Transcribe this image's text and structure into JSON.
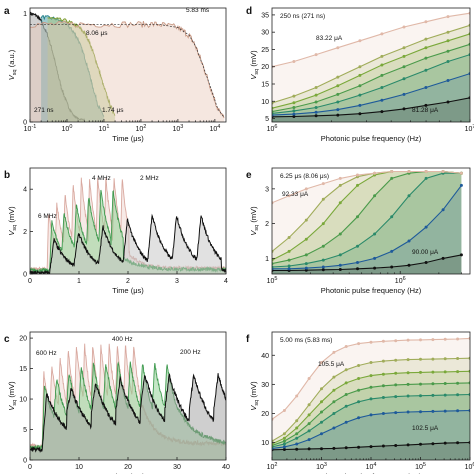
{
  "chart_data": [
    {
      "panel": "a",
      "type": "line",
      "xscale": "log",
      "yscale": "linear",
      "xlabel": "Time (μs)",
      "ylabel": "V_sq (a.u.)",
      "xlim": [
        0.1,
        20000
      ],
      "ylim": [
        0,
        1.05
      ],
      "xticks": [
        {
          "v": 0.1,
          "label": "10^-1"
        },
        {
          "v": 1,
          "label": "10^0"
        },
        {
          "v": 10,
          "label": "10^1"
        },
        {
          "v": 100,
          "label": "10^2"
        },
        {
          "v": 1000,
          "label": "10^3"
        },
        {
          "v": 10000,
          "label": "10^4"
        }
      ],
      "yticks": [
        0,
        1
      ],
      "series": [
        {
          "label": "271 ns",
          "color": "#111111",
          "fill": "#9a9a9a",
          "x": [
            0.1,
            0.15,
            0.2,
            0.3,
            0.4,
            0.5,
            0.7,
            1.0,
            1.5,
            2,
            3
          ],
          "y": [
            1.0,
            0.98,
            0.93,
            0.8,
            0.66,
            0.52,
            0.32,
            0.17,
            0.06,
            0.03,
            0.02
          ]
        },
        {
          "label": "1.74 μs",
          "color": "#1f7f8a",
          "fill": "#2a8f98",
          "x": [
            0.2,
            0.5,
            1,
            1.5,
            2,
            3,
            4,
            5,
            7,
            10
          ],
          "y": [
            0.97,
            0.95,
            0.9,
            0.83,
            0.76,
            0.6,
            0.45,
            0.32,
            0.15,
            0.05
          ]
        },
        {
          "label": "8.06 μs",
          "color": "#7a9a2a",
          "fill": "#a8c070",
          "x": [
            0.3,
            1,
            2,
            3,
            4,
            5,
            7,
            10,
            15,
            20
          ],
          "y": [
            0.96,
            0.93,
            0.88,
            0.82,
            0.74,
            0.65,
            0.5,
            0.32,
            0.15,
            0.06
          ]
        },
        {
          "label": "5.83 ms",
          "color": "#c99a86",
          "fill": "#e8c9bb",
          "x": [
            0.1,
            1,
            10,
            100,
            300,
            1000,
            2000,
            3000,
            5000,
            8000,
            12000,
            18000
          ],
          "y": [
            0.9,
            0.9,
            0.9,
            0.9,
            0.9,
            0.87,
            0.8,
            0.7,
            0.5,
            0.3,
            0.12,
            0.04
          ]
        }
      ],
      "annotations": [
        "271 ns",
        "1.74 μs",
        "8.06 μs",
        "5.83 ms"
      ]
    },
    {
      "panel": "b",
      "type": "line",
      "xscale": "linear",
      "xlabel": "Time (μs)",
      "ylabel": "V_sq (mV)",
      "xlim": [
        0,
        4
      ],
      "ylim": [
        0,
        5
      ],
      "xticks": [
        0,
        1,
        2,
        3,
        4
      ],
      "yticks": [
        0,
        2,
        4
      ],
      "series": [
        {
          "label": "6 MHz",
          "color": "#d9a9a0",
          "fill": "#f0d6cf",
          "f": 6,
          "x0": 0.35,
          "n": 10,
          "peak": 4.6,
          "base": 0.9,
          "tau": 0.16
        },
        {
          "label": "4 MHz",
          "color": "#3f9a4f",
          "fill": "#8ccf8f",
          "f": 4,
          "x0": 0.4,
          "n": 6,
          "peak": 4.0,
          "base": 0.7,
          "tau": 0.22
        },
        {
          "label": "2 MHz",
          "color": "#111111",
          "fill": "#c4c4c4",
          "f": 2,
          "x0": 0.4,
          "n": 7,
          "peak": 2.8,
          "base": 0.2,
          "tau": 0.28
        }
      ],
      "annotations": [
        "6 MHz",
        "4 MHz",
        "2 MHz"
      ]
    },
    {
      "panel": "c",
      "type": "line",
      "xscale": "linear",
      "xlabel": "Time (ms)",
      "ylabel": "V_sq (mV)",
      "xlim": [
        0,
        40
      ],
      "ylim": [
        0,
        21
      ],
      "xticks": [
        0,
        10,
        20,
        30,
        40
      ],
      "yticks": [
        0,
        5,
        10,
        15,
        20
      ],
      "series": [
        {
          "label": "600 Hz",
          "color": "#d9a9a0",
          "fill": "#f0d6cf",
          "f": 0.6,
          "x0": 2.5,
          "n": 12,
          "peak": 19,
          "base": 9,
          "tau": 1.8
        },
        {
          "label": "400 Hz",
          "color": "#3f9a4f",
          "fill": "#8ccf8f",
          "f": 0.4,
          "x0": 2.5,
          "n": 11,
          "peak": 16,
          "base": 8,
          "tau": 2.6
        },
        {
          "label": "200 Hz",
          "color": "#111111",
          "fill": "#a0a0a0",
          "f": 0.2,
          "x0": 2.5,
          "n": 8,
          "peak": 14,
          "base": 7,
          "tau": 4.0
        }
      ],
      "annotations": [
        "600 Hz",
        "400 Hz",
        "200 Hz"
      ]
    },
    {
      "panel": "d",
      "type": "line",
      "xscale": "log",
      "xlabel": "Photonic pulse frequency (Hz)",
      "ylabel": "V_sq (mV)",
      "xlim": [
        1000000,
        10000000
      ],
      "ylim": [
        4,
        37
      ],
      "xticks": [
        {
          "v": 1000000,
          "label": "10^6"
        },
        {
          "v": 10000000,
          "label": "10^7"
        }
      ],
      "yticks": [
        5,
        10,
        15,
        20,
        25,
        30,
        35
      ],
      "x": [
        1000000,
        1290000,
        1670000,
        2150000,
        2780000,
        3590000,
        4640000,
        5990000,
        7740000,
        10000000
      ],
      "series": [
        {
          "color": "#111111",
          "values": [
            5.5,
            5.6,
            5.8,
            6.0,
            6.4,
            7.0,
            7.8,
            8.8,
            9.8,
            11.0
          ]
        },
        {
          "color": "#1e5a9a",
          "values": [
            6.0,
            6.3,
            6.8,
            7.6,
            8.8,
            10.3,
            12.0,
            14.0,
            16.0,
            18.0
          ]
        },
        {
          "color": "#2a8a6a",
          "values": [
            6.5,
            7.2,
            8.2,
            9.8,
            11.8,
            14.0,
            16.5,
            19.0,
            21.5,
            23.5
          ]
        },
        {
          "color": "#4a9a4a",
          "values": [
            7.0,
            8.2,
            9.8,
            12.0,
            14.5,
            17.5,
            20.0,
            22.5,
            24.5,
            26.5
          ]
        },
        {
          "color": "#7aa83a",
          "values": [
            8.0,
            9.6,
            11.8,
            14.5,
            17.5,
            20.5,
            23.0,
            25.5,
            27.5,
            29.5
          ]
        },
        {
          "color": "#a0ac5a",
          "values": [
            9.5,
            11.5,
            14.0,
            17.0,
            20.0,
            23.0,
            25.5,
            28.0,
            30.0,
            32.0
          ]
        },
        {
          "color": "#e0b8a8",
          "values": [
            20.0,
            21.5,
            23.5,
            25.5,
            27.5,
            29.5,
            31.5,
            33.0,
            34.5,
            35.5
          ]
        }
      ],
      "annotations": [
        "250 ns (271 ns)",
        "83.22 μA",
        "81.28 μA"
      ]
    },
    {
      "panel": "e",
      "type": "line",
      "xscale": "log",
      "xlabel": "Photonic pulse frequency (Hz)",
      "ylabel": "V_sq (mV)",
      "xlim": [
        100000,
        3500000
      ],
      "ylim": [
        0.55,
        3.6
      ],
      "xticks": [
        {
          "v": 100000,
          "label": "10^5"
        },
        {
          "v": 1000000,
          "label": "10^6"
        }
      ],
      "yticks": [
        1,
        2,
        3
      ],
      "x": [
        100000,
        136000,
        185000,
        251000,
        341000,
        464000,
        631000,
        858000,
        1170000,
        1590000,
        2160000,
        3000000
      ],
      "series": [
        {
          "color": "#111111",
          "values": [
            0.65,
            0.65,
            0.66,
            0.67,
            0.68,
            0.7,
            0.72,
            0.75,
            0.8,
            0.88,
            1.0,
            1.1
          ]
        },
        {
          "color": "#1e5a9a",
          "values": [
            0.7,
            0.7,
            0.72,
            0.75,
            0.8,
            0.88,
            1.0,
            1.2,
            1.5,
            1.9,
            2.4,
            3.1
          ]
        },
        {
          "color": "#2a8a6a",
          "values": [
            0.75,
            0.78,
            0.85,
            0.95,
            1.1,
            1.35,
            1.7,
            2.2,
            2.8,
            3.3,
            3.45,
            3.45
          ]
        },
        {
          "color": "#4a9a4a",
          "values": [
            0.85,
            0.95,
            1.1,
            1.35,
            1.7,
            2.2,
            2.8,
            3.3,
            3.45,
            3.5,
            3.5,
            3.45
          ]
        },
        {
          "color": "#7aa83a",
          "values": [
            0.95,
            1.2,
            1.55,
            2.0,
            2.6,
            3.1,
            3.4,
            3.5,
            3.5,
            3.5,
            3.5,
            3.45
          ]
        },
        {
          "color": "#a0ac5a",
          "values": [
            1.2,
            1.6,
            2.1,
            2.7,
            3.1,
            3.35,
            3.45,
            3.5,
            3.5,
            3.5,
            3.5,
            3.45
          ]
        },
        {
          "color": "#e0b8a8",
          "values": [
            2.6,
            2.8,
            3.0,
            3.15,
            3.3,
            3.4,
            3.45,
            3.5,
            3.5,
            3.5,
            3.5,
            3.45
          ]
        }
      ],
      "annotations": [
        "6.25 μs (8.06 μs)",
        "92.33 μA",
        "90.00 μA"
      ]
    },
    {
      "panel": "f",
      "type": "line",
      "xscale": "log",
      "xlabel": "Photonic pulse frequency (Hz)",
      "ylabel": "V_sq (mV)",
      "xlim": [
        100,
        1000000
      ],
      "ylim": [
        4,
        48
      ],
      "xticks": [
        {
          "v": 100,
          "label": "10^2"
        },
        {
          "v": 1000,
          "label": "10^3"
        },
        {
          "v": 10000,
          "label": "10^4"
        },
        {
          "v": 100000,
          "label": "10^5"
        },
        {
          "v": 1000000,
          "label": "10^6"
        }
      ],
      "yticks": [
        10,
        20,
        30,
        40
      ],
      "x": [
        100,
        178,
        316,
        562,
        1000,
        1780,
        3160,
        5620,
        10000,
        17800,
        31600,
        56200,
        100000,
        178000,
        316000,
        562000,
        1000000
      ],
      "series": [
        {
          "color": "#111111",
          "values": [
            7.5,
            7.6,
            7.7,
            7.8,
            7.9,
            8.0,
            8.2,
            8.4,
            8.6,
            8.8,
            9.0,
            9.2,
            9.4,
            9.6,
            9.8,
            9.9,
            10.0
          ]
        },
        {
          "color": "#1e5a9a",
          "values": [
            8.0,
            8.5,
            9.5,
            11.0,
            13.0,
            15.0,
            17.0,
            18.5,
            19.5,
            20.0,
            20.3,
            20.5,
            20.6,
            20.7,
            20.8,
            20.9,
            21.0
          ]
        },
        {
          "color": "#2a8a6a",
          "values": [
            8.5,
            9.5,
            11.5,
            14.0,
            17.0,
            20.0,
            22.5,
            24.0,
            25.0,
            25.5,
            25.8,
            26.0,
            26.1,
            26.2,
            26.3,
            26.4,
            26.5
          ]
        },
        {
          "color": "#4a9a4a",
          "values": [
            9.0,
            10.5,
            13.0,
            16.5,
            20.5,
            24.0,
            26.5,
            28.0,
            29.0,
            29.5,
            29.8,
            30.0,
            30.1,
            30.2,
            30.3,
            30.4,
            30.5
          ]
        },
        {
          "color": "#7aa83a",
          "values": [
            9.5,
            11.5,
            15.0,
            19.5,
            24.0,
            28.0,
            30.5,
            32.0,
            33.0,
            33.5,
            33.8,
            34.0,
            34.1,
            34.2,
            34.3,
            34.4,
            34.5
          ]
        },
        {
          "color": "#a0ac5a",
          "values": [
            10.5,
            13.0,
            17.5,
            23.0,
            28.5,
            32.5,
            35.0,
            36.5,
            37.5,
            38.0,
            38.3,
            38.5,
            38.6,
            38.7,
            38.8,
            38.9,
            39.0
          ]
        },
        {
          "color": "#e0b8a8",
          "values": [
            18.0,
            21.0,
            26.0,
            32.0,
            37.5,
            41.0,
            43.0,
            44.0,
            44.5,
            44.8,
            45.0,
            45.2,
            45.3,
            45.4,
            45.5,
            45.6,
            45.8
          ]
        }
      ],
      "annotations": [
        "5.00 ms (5.83 ms)",
        "105.5 μA",
        "102.5 μA"
      ]
    }
  ]
}
